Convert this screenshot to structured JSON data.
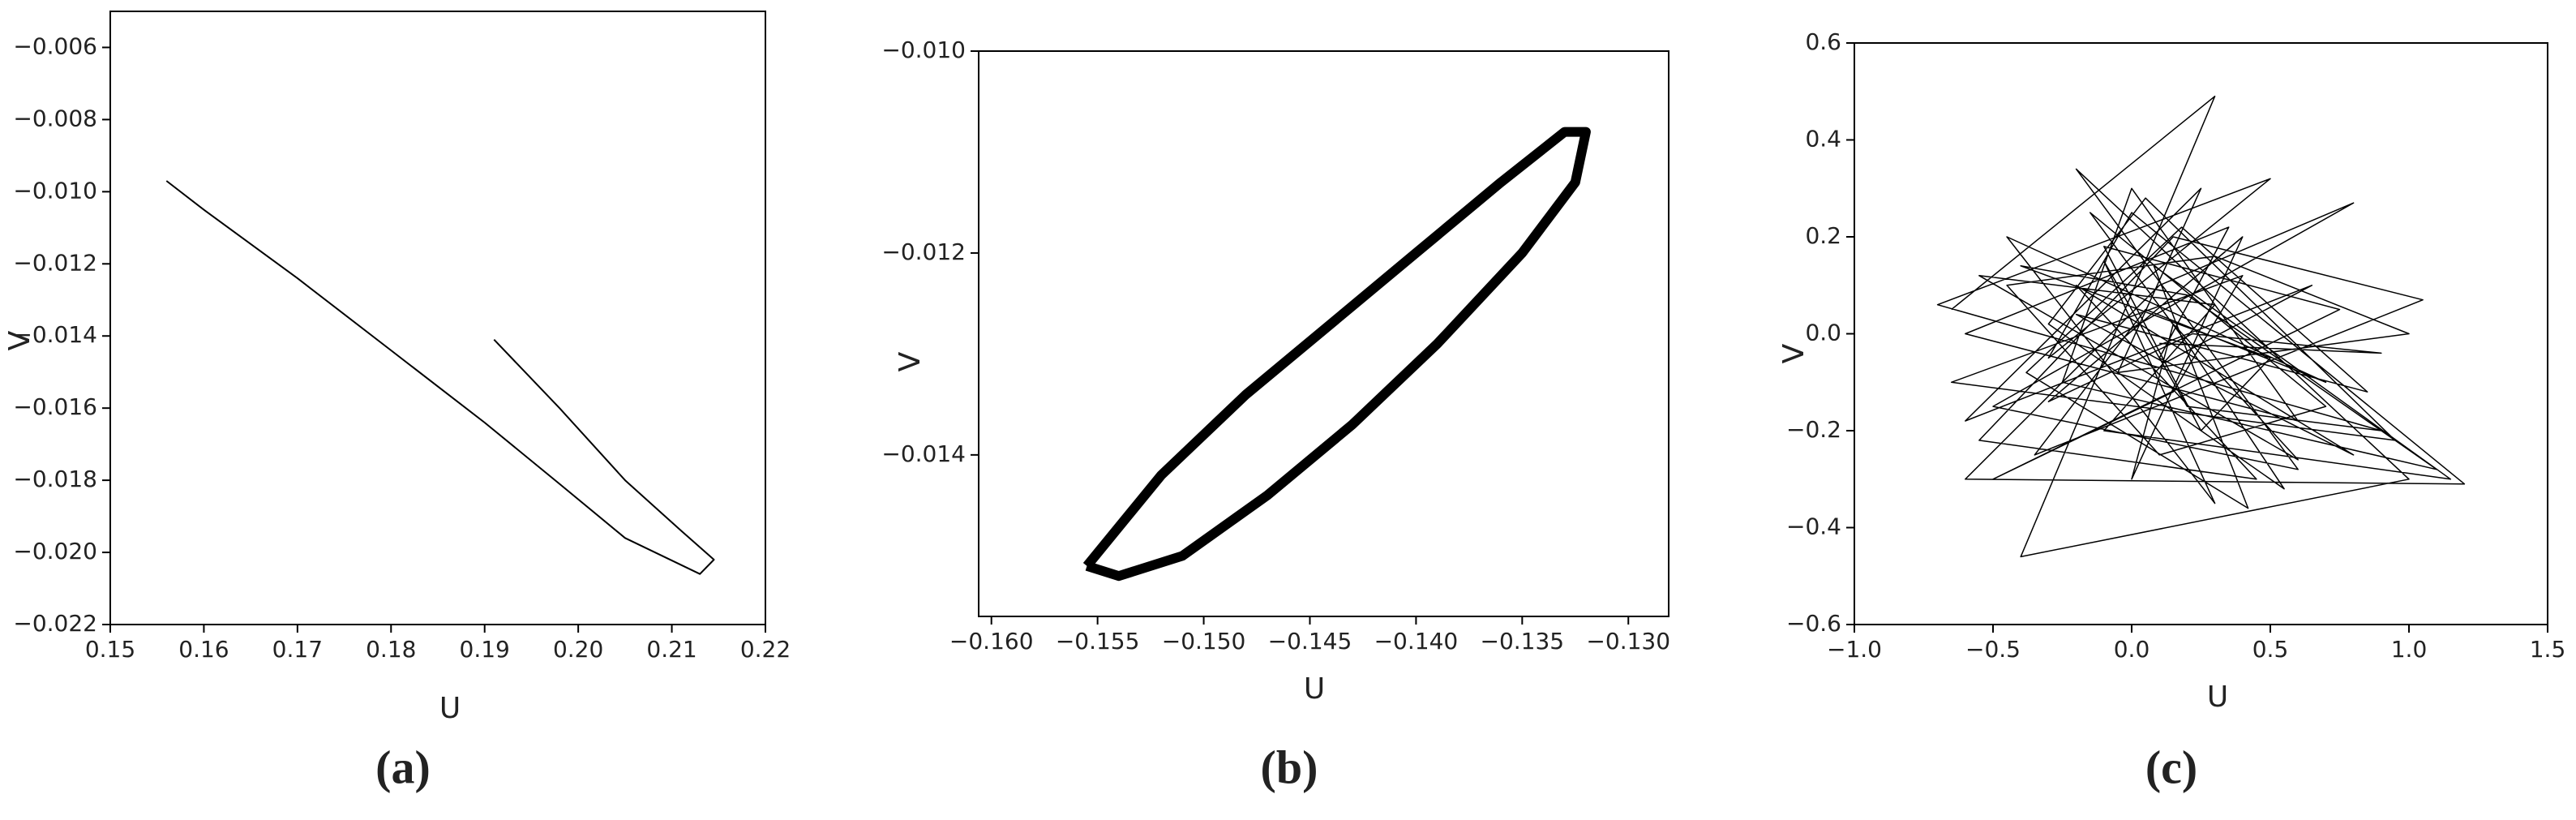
{
  "chart_data": [
    {
      "type": "line",
      "title": "(a)",
      "xlabel": "U",
      "ylabel": "V",
      "color": "#000000",
      "x": [
        0.156,
        0.16,
        0.17,
        0.18,
        0.19,
        0.198,
        0.205,
        0.213,
        0.2145,
        0.211,
        0.205,
        0.198,
        0.191
      ],
      "values": [
        -0.0097,
        -0.0105,
        -0.0124,
        -0.0144,
        -0.0164,
        -0.0181,
        -0.0196,
        -0.0206,
        -0.0202,
        -0.0194,
        -0.018,
        -0.016,
        -0.0141
      ],
      "xlim": [
        0.15,
        0.22
      ],
      "ylim": [
        -0.022,
        -0.005
      ],
      "xticks": [
        {
          "value": 0.15,
          "label": "0.15"
        },
        {
          "value": 0.16,
          "label": "0.16"
        },
        {
          "value": 0.17,
          "label": "0.17"
        },
        {
          "value": 0.18,
          "label": "0.18"
        },
        {
          "value": 0.19,
          "label": "0.19"
        },
        {
          "value": 0.2,
          "label": "0.20"
        },
        {
          "value": 0.21,
          "label": "0.21"
        },
        {
          "value": 0.22,
          "label": "0.22"
        }
      ],
      "yticks": [
        {
          "value": -0.022,
          "label": "−0.022"
        },
        {
          "value": -0.02,
          "label": "−0.020"
        },
        {
          "value": -0.018,
          "label": "−0.018"
        },
        {
          "value": -0.016,
          "label": "−0.016"
        },
        {
          "value": -0.014,
          "label": "−0.014"
        },
        {
          "value": -0.012,
          "label": "−0.012"
        },
        {
          "value": -0.01,
          "label": "−0.010"
        },
        {
          "value": -0.008,
          "label": "−0.008"
        },
        {
          "value": -0.006,
          "label": "−0.006"
        }
      ]
    },
    {
      "type": "line",
      "title": "(b)",
      "xlabel": "U",
      "ylabel": "V",
      "color": "#000000",
      "x": [
        -0.1555,
        -0.152,
        -0.148,
        -0.144,
        -0.14,
        -0.136,
        -0.133,
        -0.132,
        -0.1325,
        -0.135,
        -0.139,
        -0.143,
        -0.147,
        -0.151,
        -0.154,
        -0.1555
      ],
      "values": [
        -0.0151,
        -0.0142,
        -0.0134,
        -0.0127,
        -0.012,
        -0.0113,
        -0.0108,
        -0.0108,
        -0.0113,
        -0.012,
        -0.0129,
        -0.0137,
        -0.0144,
        -0.015,
        -0.0152,
        -0.0151
      ],
      "xlim": [
        -0.1606,
        -0.1281
      ],
      "ylim": [
        -0.0156,
        -0.01
      ],
      "xticks": [
        {
          "value": -0.16,
          "label": "−0.160"
        },
        {
          "value": -0.155,
          "label": "−0.155"
        },
        {
          "value": -0.15,
          "label": "−0.150"
        },
        {
          "value": -0.145,
          "label": "−0.145"
        },
        {
          "value": -0.14,
          "label": "−0.140"
        },
        {
          "value": -0.135,
          "label": "−0.135"
        },
        {
          "value": -0.13,
          "label": "−0.130"
        }
      ],
      "yticks": [
        {
          "value": -0.014,
          "label": "−0.014"
        },
        {
          "value": -0.012,
          "label": "−0.012"
        },
        {
          "value": -0.01,
          "label": "−0.010"
        }
      ]
    },
    {
      "type": "line",
      "title": "(c)",
      "xlabel": "U",
      "ylabel": "V",
      "color": "#000000",
      "x": [
        -0.65,
        0.3,
        -0.4,
        1.0,
        -0.2,
        0.6,
        -0.5,
        0.8,
        0.1,
        -0.6,
        1.2,
        0.0,
        -0.3,
        0.5,
        -0.7,
        0.9,
        0.2,
        -0.1,
        0.3,
        -0.45,
        0.7,
        0.05,
        -0.35,
        1.05,
        0.15,
        -0.55,
        0.45,
        -0.2,
        0.8,
        0.1,
        0.35,
        -0.6,
        0.6,
        0.0,
        -0.25,
        1.1,
        0.2,
        -0.4,
        0.5,
        0.25,
        -0.1,
        0.75,
        -0.5,
        0.15,
        0.4,
        -0.65,
        0.95,
        0.05,
        -0.3,
        0.55,
        0.2,
        -0.15,
        0.7,
        0.1,
        -0.45,
        0.3,
        1.0,
        -0.05,
        0.25,
        -0.6,
        0.65,
        0.12,
        -0.2,
        0.85,
        0.18,
        -0.38,
        0.42,
        0.08,
        1.15,
        -0.1,
        0.3,
        -0.55,
        0.6,
        0.15,
        0.0,
        0.4,
        -0.3,
        0.22,
        0.9,
        0.1
      ],
      "values": [
        0.05,
        0.49,
        -0.46,
        -0.3,
        0.34,
        -0.28,
        -0.15,
        0.27,
        0.1,
        -0.3,
        -0.31,
        0.25,
        -0.05,
        0.32,
        0.06,
        -0.2,
        -0.15,
        0.15,
        -0.35,
        0.2,
        -0.1,
        0.05,
        -0.25,
        0.07,
        0.2,
        -0.22,
        -0.3,
        0.1,
        -0.25,
        -0.05,
        0.22,
        0.0,
        -0.18,
        0.3,
        -0.1,
        -0.28,
        0.08,
        0.14,
        -0.05,
        -0.2,
        0.18,
        0.05,
        -0.3,
        -0.12,
        0.12,
        -0.1,
        -0.22,
        0.28,
        0.02,
        -0.32,
        -0.02,
        0.25,
        -0.15,
        -0.25,
        0.1,
        0.16,
        0.0,
        -0.08,
        0.3,
        -0.18,
        0.1,
        -0.06,
        0.04,
        -0.12,
        0.22,
        -0.08,
        -0.36,
        0.14,
        -0.3,
        -0.2,
        0.06,
        0.12,
        -0.26,
        0.02,
        -0.3,
        0.2,
        -0.14,
        0.0,
        -0.04,
        -0.02
      ],
      "xlim": [
        -1.0,
        1.5
      ],
      "ylim": [
        -0.6,
        0.6
      ],
      "xticks": [
        {
          "value": -1.0,
          "label": "−1.0"
        },
        {
          "value": -0.5,
          "label": "−0.5"
        },
        {
          "value": 0.0,
          "label": "0.0"
        },
        {
          "value": 0.5,
          "label": "0.5"
        },
        {
          "value": 1.0,
          "label": "1.0"
        },
        {
          "value": 1.5,
          "label": "1.5"
        }
      ],
      "yticks": [
        {
          "value": -0.6,
          "label": "−0.6"
        },
        {
          "value": -0.4,
          "label": "−0.4"
        },
        {
          "value": -0.2,
          "label": "−0.2"
        },
        {
          "value": 0.0,
          "label": "0.0"
        },
        {
          "value": 0.2,
          "label": "0.2"
        },
        {
          "value": 0.4,
          "label": "0.4"
        },
        {
          "value": 0.6,
          "label": "0.6"
        }
      ]
    }
  ]
}
